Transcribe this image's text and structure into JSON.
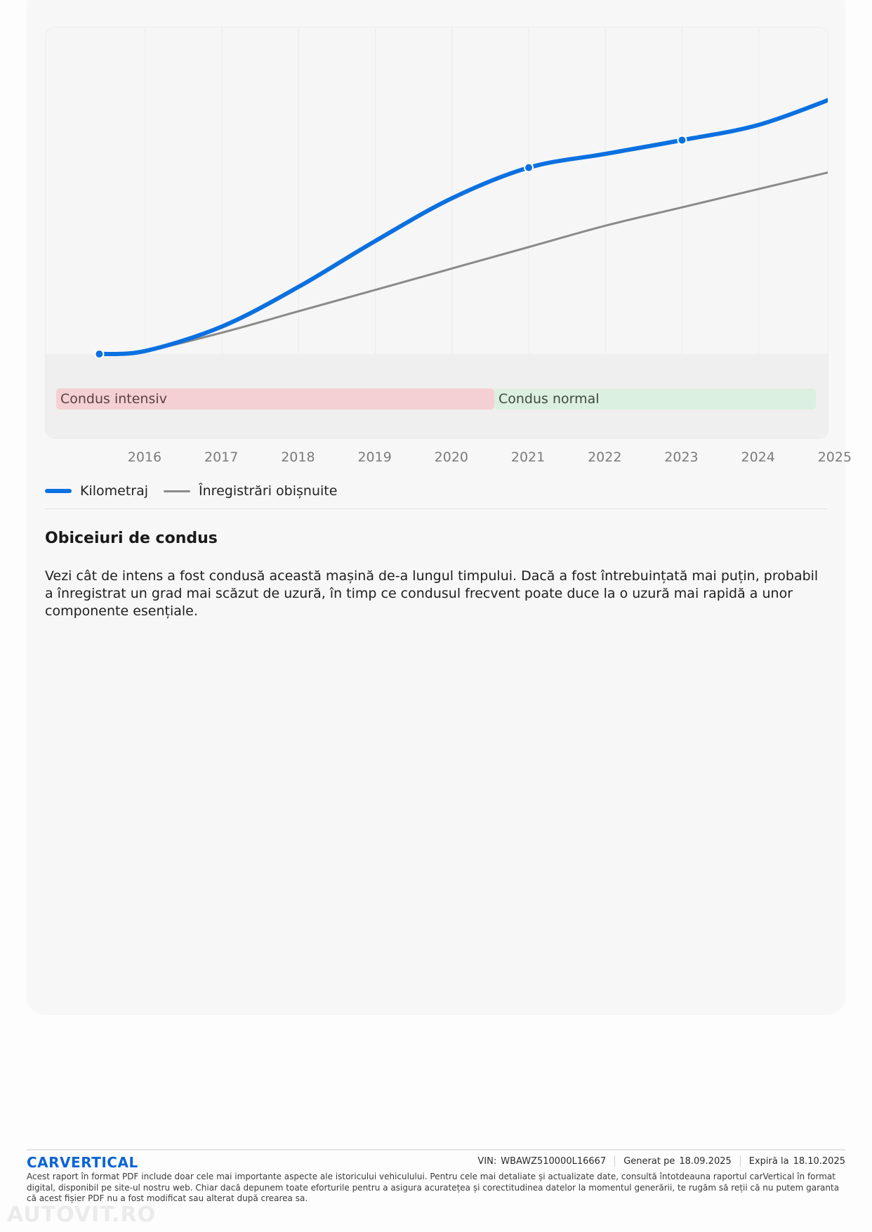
{
  "chart_data": {
    "type": "line",
    "x_ticks": [
      "2016",
      "2017",
      "2018",
      "2019",
      "2020",
      "2021",
      "2022",
      "2023",
      "2024",
      "2025"
    ],
    "series": [
      {
        "name": "Kilometraj",
        "color": "#0b70e0",
        "points": [
          [
            2015.4,
            0
          ],
          [
            2016.0,
            1
          ],
          [
            2017.0,
            9
          ],
          [
            2018.0,
            22
          ],
          [
            2019.0,
            37
          ],
          [
            2020.0,
            51
          ],
          [
            2021.0,
            61
          ],
          [
            2022.0,
            65.5
          ],
          [
            2023.0,
            70
          ],
          [
            2024.0,
            75
          ],
          [
            2025.0,
            84
          ]
        ],
        "markers": [
          [
            2015.4,
            0
          ],
          [
            2021.0,
            61
          ],
          [
            2023.0,
            70
          ],
          [
            2025.1,
            85
          ]
        ]
      },
      {
        "name": "Înregistrări obișnuite",
        "color": "#8a8a8a",
        "points": [
          [
            2015.4,
            0
          ],
          [
            2016.0,
            1
          ],
          [
            2017.0,
            7
          ],
          [
            2018.0,
            14
          ],
          [
            2019.0,
            21
          ],
          [
            2020.0,
            28
          ],
          [
            2021.0,
            35
          ],
          [
            2022.0,
            42
          ],
          [
            2023.0,
            48
          ],
          [
            2024.0,
            54
          ],
          [
            2025.0,
            60
          ]
        ]
      }
    ],
    "xlim": [
      2014.7,
      2024.9
    ],
    "ylim": [
      0,
      100
    ],
    "bands": [
      {
        "label": "Condus intensiv",
        "color": "#f5d0d3"
      },
      {
        "label": "Condus normal",
        "color": "#dcf0df"
      }
    ],
    "grid": true,
    "legend_position": "bottom-left"
  },
  "legend": {
    "mileage_label": "Kilometraj",
    "typical_label": "Înregistrări obișnuite"
  },
  "section": {
    "title": "Obiceiuri de condus",
    "body": "Vezi cât de intens a fost condusă această mașină de-a lungul timpului. Dacă a fost întrebuințată mai puțin, probabil a înregistrat un grad mai scăzut de uzură, în timp ce condusul frecvent poate duce la o uzură mai rapidă a unor componente esențiale."
  },
  "footer": {
    "brand": "CARVERTICAL",
    "vin_label": "VIN:",
    "vin": "WBAWZ510000L16667",
    "generated_label": "Generat pe",
    "generated_date": "18.09.2025",
    "expires_label": "Expiră la",
    "expires_date": "18.10.2025",
    "disclaimer": "Acest raport în format PDF include doar cele mai importante aspecte ale istoricului vehiculului. Pentru cele mai detaliate și actualizate date, consultă întotdeauna raportul carVertical în format digital, disponibil pe site-ul nostru web. Chiar dacă depunem toate eforturile pentru a asigura acuratețea și corectitudinea datelor la momentul generării, te rugăm să reții că nu putem garanta că acest fișier PDF nu a fost modificat sau alterat după crearea sa."
  },
  "watermark": "AUTOVIT.RO",
  "colors": {
    "accent": "#0b70e0",
    "typical": "#8a8a8a",
    "brand": "#0b65d6"
  }
}
